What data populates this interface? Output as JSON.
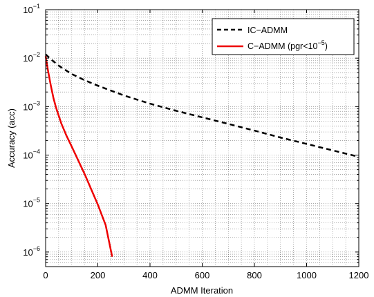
{
  "chart_data": {
    "type": "line",
    "title": "",
    "xlabel": "ADMM Iteration",
    "ylabel": "Accuracy (acc)",
    "xlim": [
      0,
      1200
    ],
    "ylim": [
      5e-07,
      0.1
    ],
    "yscale": "log",
    "grid": true,
    "grid_style": "dotted",
    "legend_position": "top-right",
    "x_ticks": [
      0,
      200,
      400,
      600,
      800,
      1000,
      1200
    ],
    "x_tick_labels": [
      "0",
      "200",
      "400",
      "600",
      "800",
      "1000",
      "1200"
    ],
    "y_tick_exponents": [
      -6,
      -5,
      -4,
      -3,
      -2,
      -1
    ],
    "y_tick_base": "10",
    "y_tick_labels": [
      "10^-6",
      "10^-5",
      "10^-4",
      "10^-3",
      "10^-2",
      "10^-1"
    ],
    "series": [
      {
        "name": "IC−ADMM",
        "color": "#000000",
        "line_style": "dashed",
        "x": [
          0,
          20,
          50,
          100,
          150,
          200,
          300,
          400,
          500,
          600,
          700,
          800,
          900,
          1000,
          1100,
          1200
        ],
        "y": [
          0.012,
          0.0095,
          0.007,
          0.0047,
          0.0035,
          0.0027,
          0.0017,
          0.00115,
          0.00082,
          0.0006,
          0.00044,
          0.00032,
          0.00023,
          0.00017,
          0.000125,
          9.2e-05
        ]
      },
      {
        "name": "C−ADMM (pgr<10^-5)",
        "legend_text": "C−ADMM (pgr<10",
        "legend_superscript": "−5",
        "legend_suffix": ")",
        "color": "#ee0000",
        "line_style": "solid",
        "x": [
          0,
          5,
          10,
          20,
          30,
          40,
          60,
          80,
          100,
          150,
          200,
          230,
          255
        ],
        "y": [
          0.011,
          0.0075,
          0.0052,
          0.0027,
          0.0015,
          0.00095,
          0.00045,
          0.00025,
          0.00015,
          4e-05,
          9.5e-06,
          3.6e-06,
          8e-07
        ]
      }
    ]
  }
}
